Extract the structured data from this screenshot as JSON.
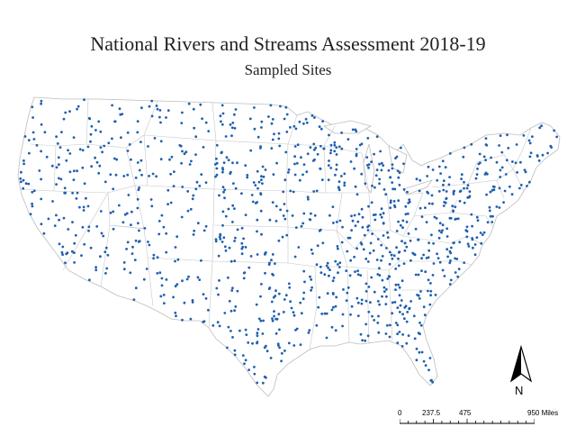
{
  "title": "National Rivers and Streams Assessment 2018-19",
  "subtitle": "Sampled Sites",
  "north_arrow": {
    "label": "N"
  },
  "scale_bar": {
    "labels": [
      "0",
      "237.5",
      "475",
      "950 Miles"
    ],
    "values": [
      0,
      237.5,
      475,
      950
    ]
  },
  "colors": {
    "site_marker": "#1f5fae",
    "state_boundary": "#bdbdbd",
    "land_fill": "#ffffff"
  },
  "legend": {
    "marker_icon": "site-dot-icon"
  }
}
